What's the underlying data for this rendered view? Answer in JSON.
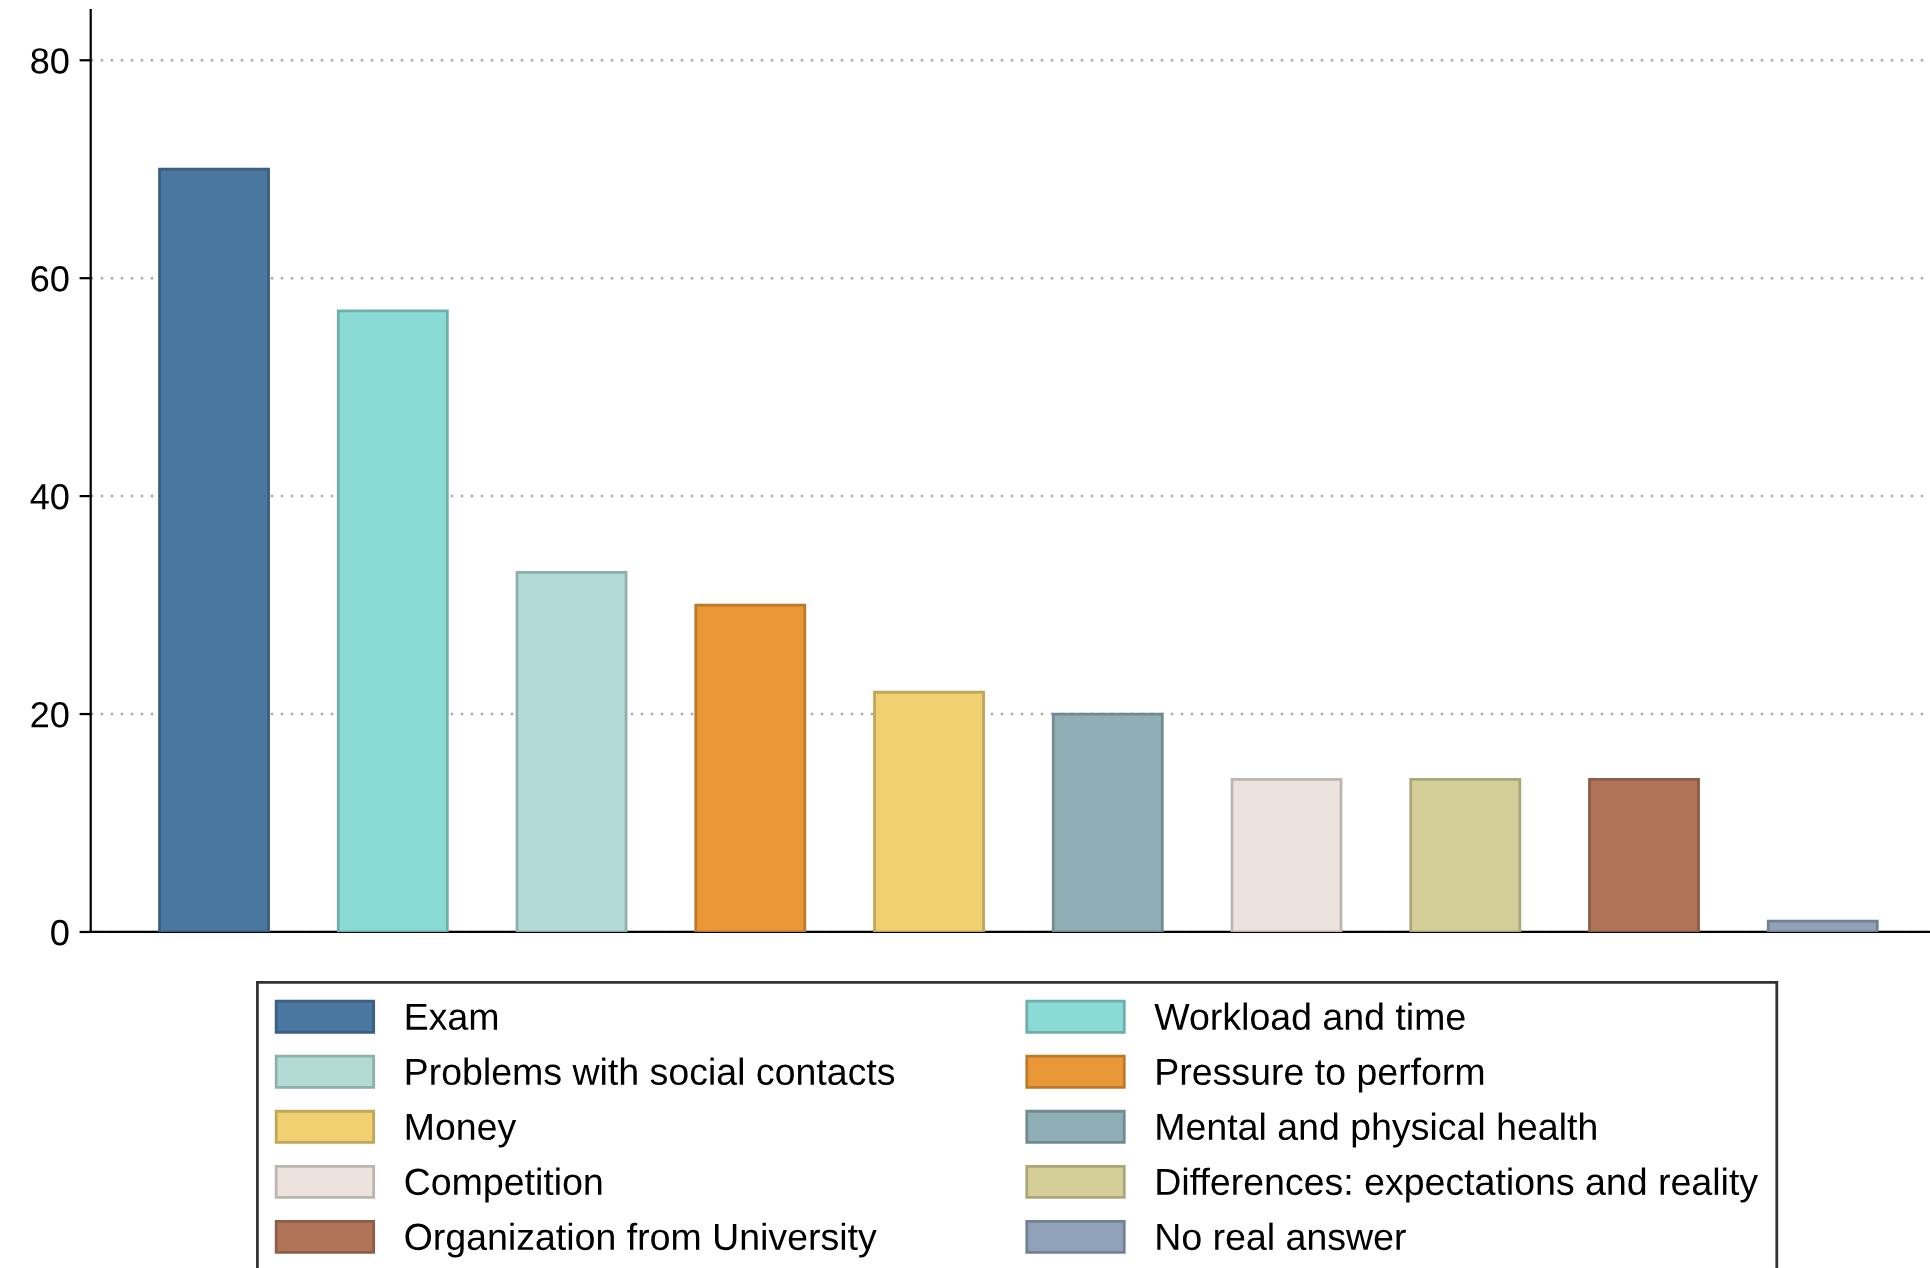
{
  "chart_data": {
    "type": "bar",
    "categories": [
      null,
      null,
      null,
      null,
      null,
      null,
      null,
      null,
      null,
      null
    ],
    "series": [
      {
        "name": "Exam",
        "color": "#4a77a0",
        "values": [
          70,
          null,
          null,
          null,
          null,
          null,
          null,
          null,
          null,
          null
        ]
      },
      {
        "name": "Workload and time",
        "color": "#8adbd5",
        "values": [
          null,
          57,
          null,
          null,
          null,
          null,
          null,
          null,
          null,
          null
        ]
      },
      {
        "name": "Problems with social contacts",
        "color": "#b3dbd5",
        "values": [
          null,
          null,
          33,
          null,
          null,
          null,
          null,
          null,
          null,
          null
        ]
      },
      {
        "name": "Pressure to perform",
        "color": "#ea9737",
        "values": [
          null,
          null,
          null,
          30,
          null,
          null,
          null,
          null,
          null,
          null
        ]
      },
      {
        "name": "Money",
        "color": "#f0d070",
        "values": [
          null,
          null,
          null,
          null,
          22,
          null,
          null,
          null,
          null,
          null
        ]
      },
      {
        "name": "Mental and physical health",
        "color": "#8faeb5",
        "values": [
          null,
          null,
          null,
          null,
          null,
          20,
          null,
          null,
          null,
          null
        ]
      },
      {
        "name": "Competition",
        "color": "#ebe3dc",
        "values": [
          null,
          null,
          null,
          null,
          null,
          null,
          14,
          null,
          null,
          null
        ]
      },
      {
        "name": "Differences: expectations and reality",
        "color": "#d4cf98",
        "values": [
          null,
          null,
          null,
          null,
          null,
          null,
          null,
          14,
          null,
          null
        ]
      },
      {
        "name": "Organization from University",
        "color": "#b07558",
        "values": [
          null,
          null,
          null,
          null,
          null,
          null,
          null,
          null,
          14,
          null
        ]
      },
      {
        "name": "No real answer",
        "color": "#8fa2b8",
        "values": [
          null,
          null,
          null,
          null,
          null,
          null,
          null,
          null,
          null,
          1
        ]
      }
    ],
    "ylim": [
      0,
      84.6
    ],
    "yticks": [
      0,
      20,
      40,
      60,
      80
    ],
    "grid": "y",
    "legend": "bottom"
  }
}
